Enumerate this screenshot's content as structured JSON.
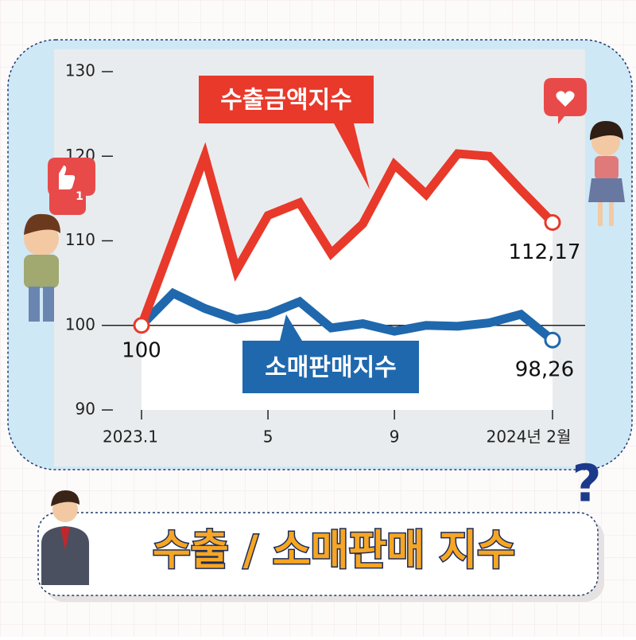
{
  "chart_data": {
    "type": "line",
    "title": "수출 / 소매판매 지수",
    "categories": [
      "2023.1",
      null,
      null,
      null,
      "5",
      null,
      null,
      null,
      "9",
      null,
      null,
      null,
      null,
      "2024년 2월"
    ],
    "series": [
      {
        "name": "수출금액지수",
        "color": "#e8392b",
        "values": [
          100,
          110,
          120,
          106.5,
          113,
          114.5,
          108.5,
          112,
          119,
          115.5,
          120.3,
          120,
          116,
          112.17
        ],
        "value_labels": [
          "100",
          null,
          null,
          null,
          null,
          null,
          null,
          null,
          null,
          null,
          null,
          null,
          null,
          "112,17"
        ]
      },
      {
        "name": "소매판매지수",
        "color": "#1f68ad",
        "values": [
          100,
          103.8,
          102,
          100.7,
          101.3,
          102.8,
          99.7,
          100.2,
          99.3,
          100,
          99.9,
          100.3,
          101.3,
          98.26
        ],
        "value_labels": [
          null,
          null,
          null,
          null,
          null,
          null,
          null,
          null,
          null,
          null,
          null,
          null,
          null,
          "98,26"
        ]
      }
    ],
    "ylim": [
      90,
      130
    ],
    "yticks": [
      90,
      100,
      110,
      120,
      130
    ],
    "reference_line": 100,
    "badge": "1",
    "question_mark": "?"
  }
}
